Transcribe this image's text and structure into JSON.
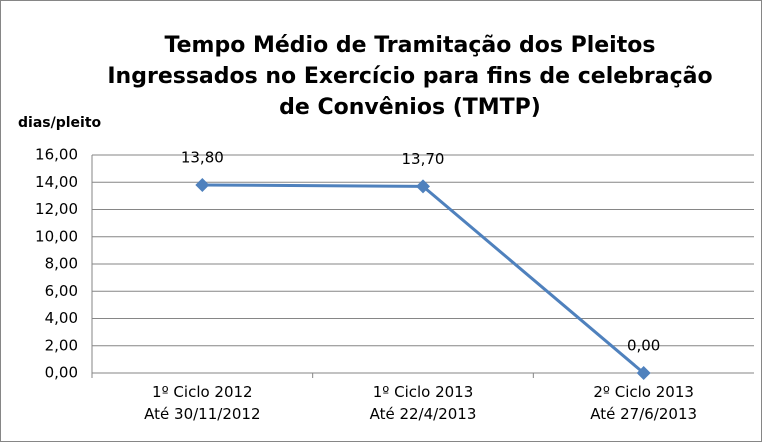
{
  "chart_data": {
    "type": "line",
    "title": "Tempo Médio de Tramitação dos Pleitos\nIngressados no Exercício para fins de celebração\nde Convênios (TMTP)",
    "y_label": "dias/pleito",
    "categories": [
      "1º Ciclo 2012\nAté 30/11/2012",
      "1º  Ciclo 2013\nAté 22/4/2013",
      "2º Ciclo 2013\nAté 27/6/2013"
    ],
    "values": [
      13.8,
      13.7,
      0
    ],
    "value_labels": [
      "13,80",
      "13,70",
      "0,00"
    ],
    "color": "#4f81bd",
    "ylim": [
      0,
      16
    ],
    "yticks": [
      {
        "value": 0,
        "label": "0,00"
      },
      {
        "value": 2,
        "label": "2,00"
      },
      {
        "value": 4,
        "label": "4,00"
      },
      {
        "value": 6,
        "label": "6,00"
      },
      {
        "value": 8,
        "label": "8,00"
      },
      {
        "value": 10,
        "label": "10,00"
      },
      {
        "value": 12,
        "label": "12,00"
      },
      {
        "value": 14,
        "label": "14,00"
      },
      {
        "value": 16,
        "label": "16,00"
      }
    ],
    "grid": true
  }
}
